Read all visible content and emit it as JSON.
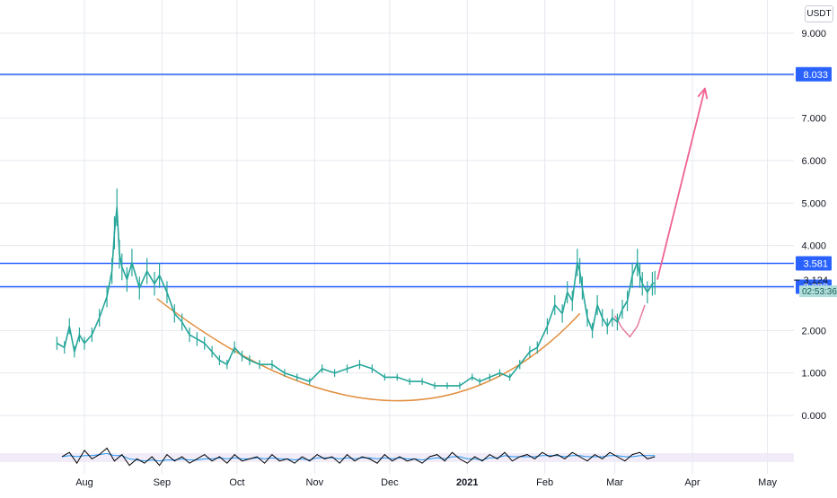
{
  "chart_data": {
    "type": "line",
    "unit_label": "USDT",
    "ylim": [
      -0.8,
      9.6
    ],
    "y_ticks": [
      0,
      1,
      2,
      3,
      4,
      5,
      6,
      7,
      8,
      9
    ],
    "y_tick_labels": [
      "0.000",
      "1.000",
      "2.000",
      "3.000",
      "4.000",
      "5.000",
      "6.000",
      "7.000",
      "8.000",
      "9.000"
    ],
    "x_ticks": [
      {
        "label": "Aug",
        "day": 0,
        "bold": false
      },
      {
        "label": "Sep",
        "day": 31,
        "bold": false
      },
      {
        "label": "Oct",
        "day": 61,
        "bold": false
      },
      {
        "label": "Nov",
        "day": 92,
        "bold": false
      },
      {
        "label": "Dec",
        "day": 122,
        "bold": false
      },
      {
        "label": "2021",
        "day": 153,
        "bold": true
      },
      {
        "label": "Feb",
        "day": 184,
        "bold": false
      },
      {
        "label": "Mar",
        "day": 212,
        "bold": false
      },
      {
        "label": "Apr",
        "day": 243,
        "bold": false
      },
      {
        "label": "May",
        "day": 273,
        "bold": false
      }
    ],
    "price_series": {
      "name": "",
      "color": "#26a69a",
      "days": [
        -11,
        -8,
        -6,
        -4,
        -2,
        0,
        3,
        6,
        9,
        11,
        12,
        13,
        14,
        15,
        17,
        19,
        22,
        25,
        28,
        30,
        33,
        36,
        39,
        42,
        45,
        48,
        51,
        54,
        57,
        60,
        63,
        66,
        70,
        75,
        80,
        85,
        90,
        95,
        100,
        105,
        110,
        115,
        120,
        125,
        130,
        135,
        140,
        145,
        150,
        155,
        158,
        162,
        166,
        170,
        174,
        178,
        181,
        185,
        188,
        191,
        193,
        195,
        197,
        198,
        199,
        201,
        203,
        205,
        207,
        209,
        211,
        213,
        215,
        217,
        219,
        221,
        222,
        223,
        225,
        227,
        228
      ],
      "values": [
        1.7,
        1.6,
        2.1,
        1.5,
        1.9,
        1.7,
        1.9,
        2.3,
        2.8,
        3.4,
        4.3,
        4.9,
        3.8,
        3.5,
        3.2,
        3.6,
        3.0,
        3.4,
        3.1,
        3.3,
        2.9,
        2.4,
        2.2,
        1.9,
        1.8,
        1.7,
        1.5,
        1.3,
        1.2,
        1.6,
        1.4,
        1.3,
        1.2,
        1.2,
        1.0,
        0.9,
        0.8,
        1.1,
        1.0,
        1.1,
        1.2,
        1.1,
        0.9,
        0.9,
        0.8,
        0.8,
        0.7,
        0.7,
        0.7,
        0.9,
        0.8,
        0.9,
        1.0,
        0.9,
        1.2,
        1.5,
        1.6,
        2.1,
        2.6,
        2.4,
        2.9,
        2.7,
        3.6,
        3.4,
        3.0,
        2.3,
        2.0,
        2.6,
        2.3,
        2.1,
        2.3,
        2.2,
        2.5,
        2.7,
        3.3,
        3.6,
        3.3,
        3.1,
        2.9,
        3.1,
        3.124
      ]
    },
    "horizontal_lines": [
      {
        "value": 8.033,
        "label": "8.033"
      },
      {
        "value": 3.581,
        "label": "3.581"
      },
      {
        "value": 3.032,
        "label": "3.032"
      }
    ],
    "current_price": {
      "value": 3.124,
      "label": "3.124",
      "timer": "02:53:36"
    },
    "cup_curve": {
      "color": "#e08d3c",
      "start_day": 29,
      "start_value": 2.75,
      "bottom_day": 122,
      "bottom_value": 0.35,
      "end_day": 198,
      "end_value": 2.4
    },
    "handle_curve": {
      "color": "#e57c9c",
      "days": [
        212,
        215,
        218,
        221,
        224
      ],
      "values": [
        2.35,
        2.05,
        1.85,
        2.1,
        2.6
      ]
    },
    "projection_arrow": {
      "color": "#f06292",
      "start_day": 229,
      "start_value": 3.2,
      "end_day": 248,
      "end_value": 7.7
    },
    "oscillator": {
      "name": "",
      "main_color": "#000000",
      "signal_color": "#2196f3",
      "days": [
        -9,
        -6,
        -3,
        0,
        3,
        6,
        9,
        12,
        15,
        18,
        21,
        24,
        27,
        30,
        33,
        36,
        39,
        42,
        45,
        48,
        51,
        54,
        57,
        60,
        63,
        66,
        69,
        72,
        75,
        78,
        81,
        84,
        87,
        90,
        93,
        96,
        99,
        102,
        105,
        108,
        111,
        114,
        117,
        120,
        123,
        126,
        129,
        132,
        135,
        138,
        141,
        144,
        147,
        150,
        153,
        156,
        159,
        162,
        165,
        168,
        171,
        174,
        177,
        180,
        183,
        186,
        189,
        192,
        195,
        198,
        201,
        204,
        207,
        210,
        213,
        216,
        219,
        222,
        225,
        228
      ],
      "values": [
        0.5,
        0.7,
        0.2,
        0.8,
        0.4,
        0.6,
        0.9,
        0.3,
        0.6,
        0.1,
        0.4,
        0.2,
        0.5,
        0.1,
        0.6,
        0.3,
        0.5,
        0.2,
        0.4,
        0.6,
        0.3,
        0.5,
        0.2,
        0.6,
        0.3,
        0.4,
        0.5,
        0.2,
        0.6,
        0.3,
        0.4,
        0.2,
        0.5,
        0.3,
        0.6,
        0.4,
        0.5,
        0.2,
        0.6,
        0.3,
        0.5,
        0.4,
        0.2,
        0.6,
        0.3,
        0.5,
        0.3,
        0.4,
        0.2,
        0.5,
        0.6,
        0.3,
        0.7,
        0.4,
        0.2,
        0.5,
        0.3,
        0.6,
        0.4,
        0.7,
        0.3,
        0.5,
        0.6,
        0.4,
        0.7,
        0.5,
        0.6,
        0.4,
        0.7,
        0.5,
        0.3,
        0.6,
        0.4,
        0.7,
        0.5,
        0.3,
        0.6,
        0.7,
        0.4,
        0.5
      ],
      "signal_values": [
        0.5,
        0.55,
        0.5,
        0.55,
        0.55,
        0.6,
        0.65,
        0.55,
        0.55,
        0.4,
        0.35,
        0.3,
        0.35,
        0.3,
        0.35,
        0.35,
        0.4,
        0.35,
        0.35,
        0.4,
        0.4,
        0.45,
        0.4,
        0.45,
        0.4,
        0.4,
        0.45,
        0.4,
        0.45,
        0.4,
        0.4,
        0.35,
        0.4,
        0.35,
        0.45,
        0.45,
        0.45,
        0.4,
        0.45,
        0.4,
        0.45,
        0.45,
        0.4,
        0.45,
        0.4,
        0.45,
        0.4,
        0.4,
        0.35,
        0.4,
        0.45,
        0.4,
        0.5,
        0.5,
        0.4,
        0.4,
        0.35,
        0.45,
        0.45,
        0.55,
        0.5,
        0.5,
        0.5,
        0.5,
        0.55,
        0.55,
        0.55,
        0.5,
        0.55,
        0.55,
        0.5,
        0.5,
        0.5,
        0.55,
        0.55,
        0.5,
        0.5,
        0.55,
        0.55,
        0.55
      ]
    },
    "colors": {
      "level_line": "#2962ff",
      "grid": "#e6e8ef",
      "price_badge": "#4aa3a0",
      "timer_bg": "#b2dfdb"
    }
  }
}
